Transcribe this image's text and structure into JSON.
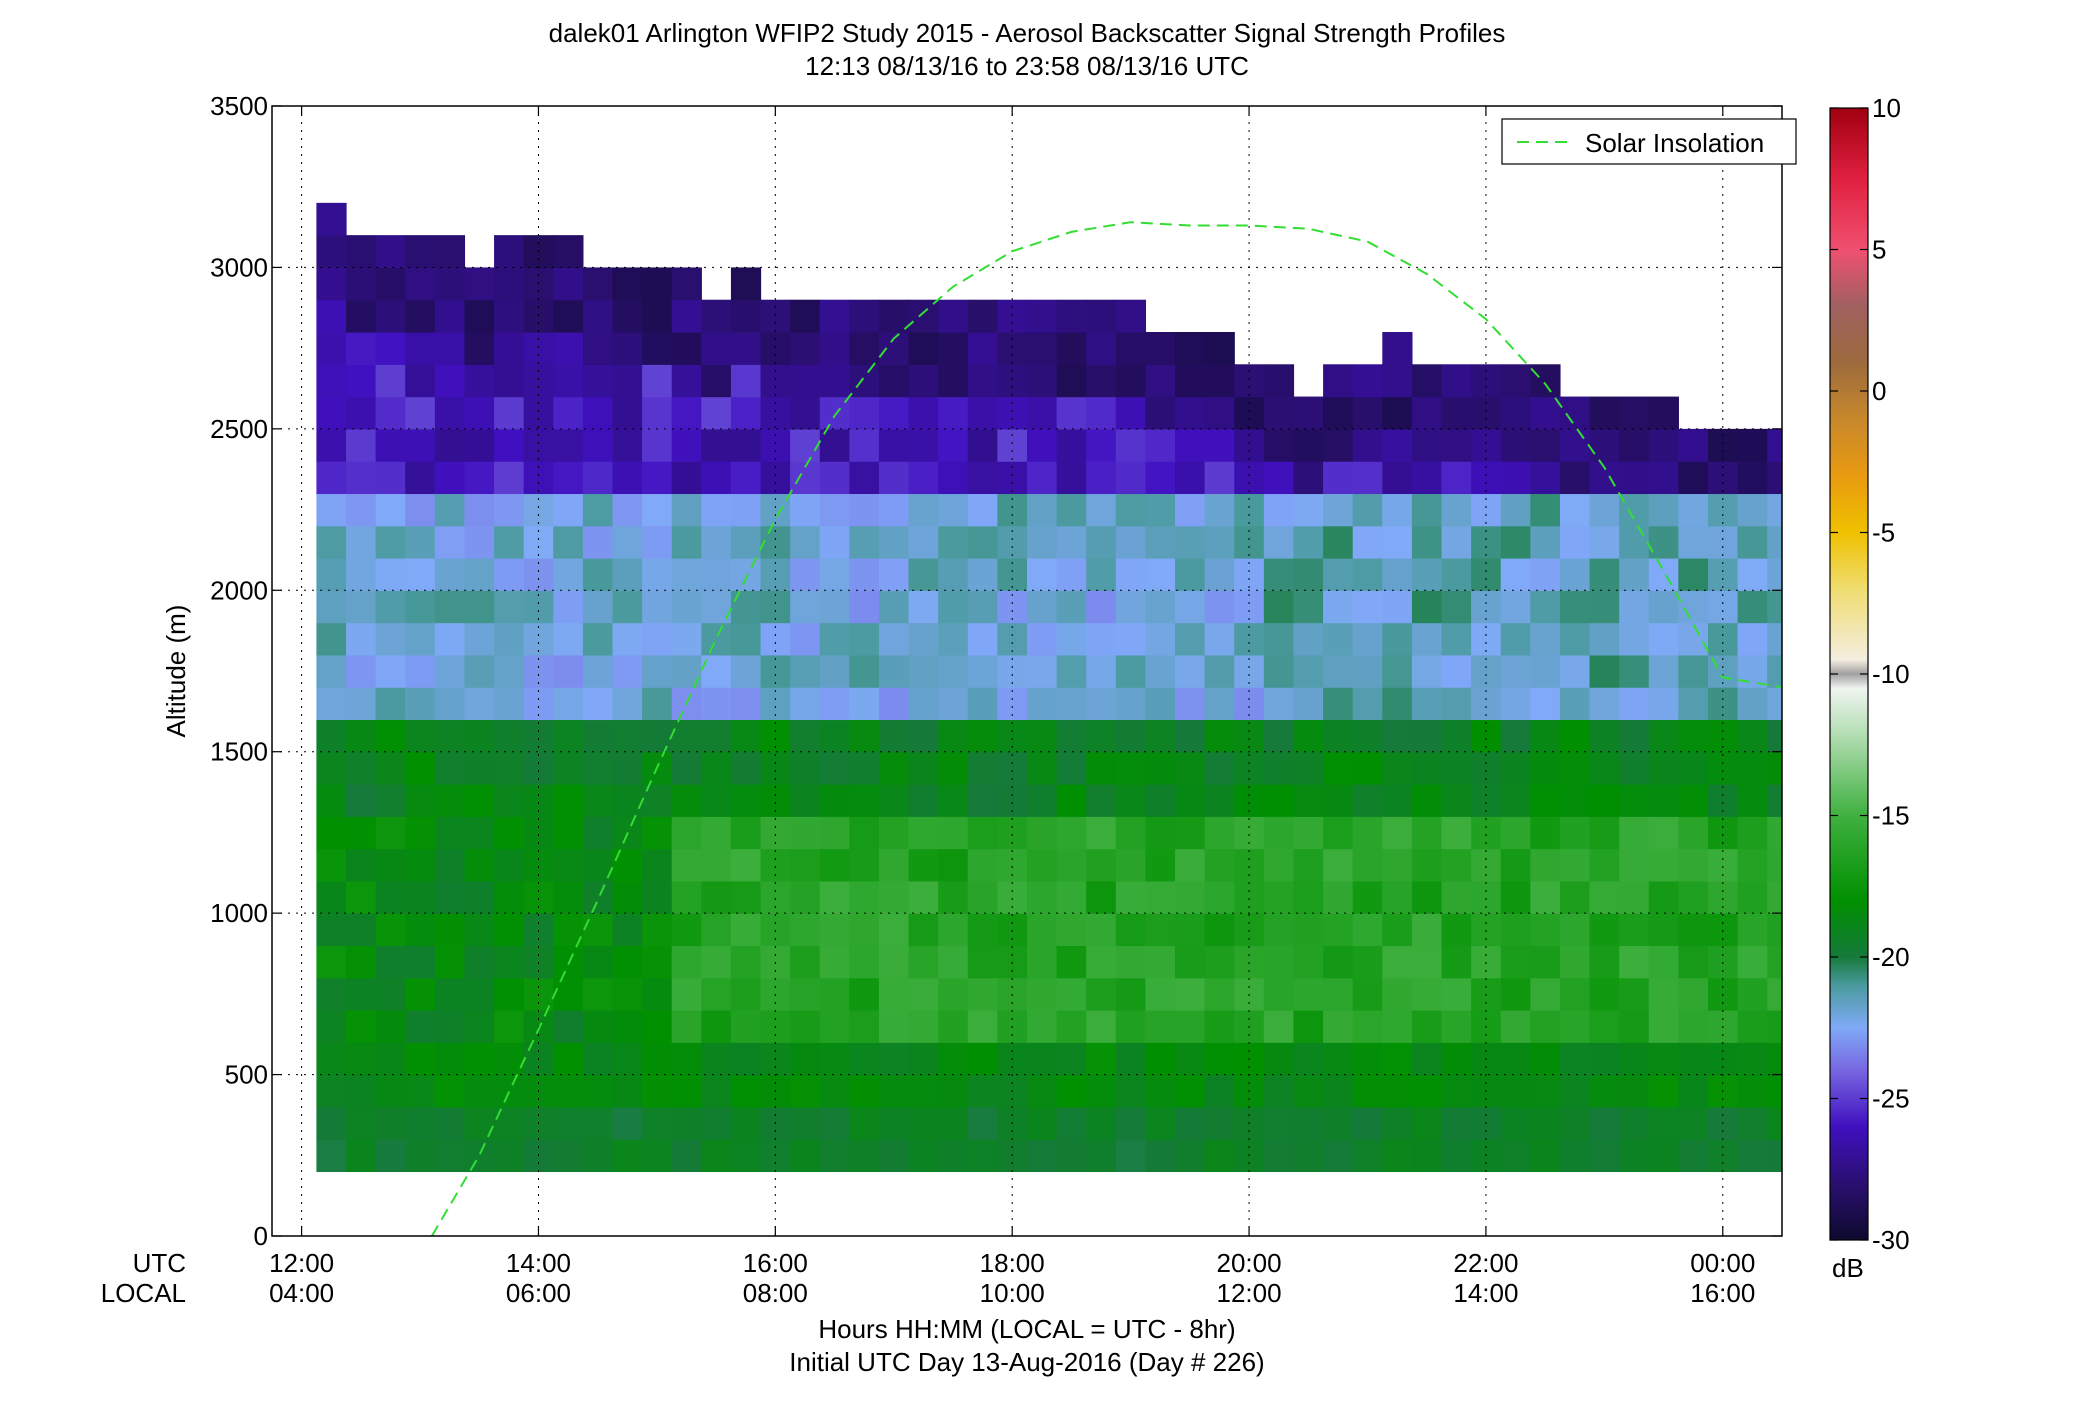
{
  "chart_data": {
    "type": "heatmap",
    "title": "dalek01 Arlington WFIP2 Study 2015 - Aerosol Backscatter Signal Strength Profiles",
    "subtitle": "12:13 08/13/16 to 23:58 08/13/16  UTC",
    "xlabel": "Hours HH:MM  (LOCAL = UTC - 8hr)",
    "xlabel2": "Initial UTC Day 13-Aug-2016 (Day # 226)",
    "ylabel": "Altitude (m)",
    "row_label_utc": "UTC",
    "row_label_local": "LOCAL",
    "xlim": [
      11.75,
      24.5
    ],
    "ylim": [
      0,
      3500
    ],
    "grid": true,
    "x_ticks": [
      12,
      14,
      16,
      18,
      20,
      22,
      24
    ],
    "x_tick_labels_utc": [
      "12:00",
      "14:00",
      "16:00",
      "18:00",
      "20:00",
      "22:00",
      "00:00"
    ],
    "x_tick_labels_local": [
      "04:00",
      "06:00",
      "08:00",
      "10:00",
      "12:00",
      "14:00",
      "16:00"
    ],
    "y_ticks": [
      0,
      500,
      1000,
      1500,
      2000,
      2500,
      3000,
      3500
    ],
    "y_tick_labels": [
      "0",
      "500",
      "1000",
      "1500",
      "2000",
      "2500",
      "3000",
      "3500"
    ],
    "colorbar": {
      "label": "dB",
      "range": [
        -30,
        10
      ],
      "ticks": [
        10,
        5,
        0,
        -5,
        -10,
        -15,
        -20,
        -25,
        -30
      ],
      "tick_labels": [
        "10",
        "5",
        "0",
        "-5",
        "-10",
        "-15",
        "-20",
        "-25",
        "-30"
      ],
      "stops": [
        {
          "v": -30,
          "c": "#0d0a2e"
        },
        {
          "v": -28,
          "c": "#2a0f70"
        },
        {
          "v": -26,
          "c": "#4010c0"
        },
        {
          "v": -24,
          "c": "#7766e0"
        },
        {
          "v": -22.5,
          "c": "#80aaf8"
        },
        {
          "v": -21,
          "c": "#4a9a9e"
        },
        {
          "v": -20,
          "c": "#157a3a"
        },
        {
          "v": -18,
          "c": "#009000"
        },
        {
          "v": -15,
          "c": "#40b040"
        },
        {
          "v": -12,
          "c": "#b8e0b8"
        },
        {
          "v": -10.5,
          "c": "#f0f4f0"
        },
        {
          "v": -10,
          "c": "#a0a0a0"
        },
        {
          "v": -9.5,
          "c": "#f4eee0"
        },
        {
          "v": -7,
          "c": "#f0dd70"
        },
        {
          "v": -5,
          "c": "#f0c000"
        },
        {
          "v": -3,
          "c": "#e89a10"
        },
        {
          "v": -1,
          "c": "#c8882c"
        },
        {
          "v": 1,
          "c": "#9c6a3c"
        },
        {
          "v": 3,
          "c": "#a06060"
        },
        {
          "v": 5,
          "c": "#f05070"
        },
        {
          "v": 7.5,
          "c": "#e02040"
        },
        {
          "v": 10,
          "c": "#a00010"
        }
      ]
    },
    "legend": {
      "position": "top-right",
      "entries": [
        "Solar Insolation"
      ]
    },
    "solar_insolation": {
      "color": "#33dd33",
      "style": "dashed",
      "x": [
        13.1,
        13.5,
        14,
        14.5,
        15,
        15.5,
        16,
        16.5,
        17,
        17.5,
        18,
        18.5,
        19,
        19.5,
        20,
        20.5,
        21,
        21.5,
        22,
        22.5,
        23,
        23.5,
        24,
        24.5
      ],
      "y": [
        0,
        250,
        640,
        1040,
        1450,
        1850,
        2220,
        2540,
        2780,
        2940,
        3050,
        3110,
        3140,
        3130,
        3130,
        3120,
        3080,
        2980,
        2840,
        2640,
        2380,
        2060,
        1730,
        1700
      ]
    },
    "heatmap": {
      "x_start": 12.25,
      "x_step": 0.25,
      "y_start": 200,
      "y_step": 100,
      "top_altitudes_m": [
        3200,
        3100,
        3100,
        3100,
        3100,
        3000,
        3100,
        3100,
        3100,
        3000,
        3000,
        3000,
        3000,
        2900,
        3000,
        2900,
        2900,
        2900,
        2900,
        2900,
        2900,
        2900,
        2900,
        2900,
        2900,
        2900,
        2900,
        2900,
        2800,
        2800,
        2800,
        2700,
        2700,
        2600,
        2700,
        2700,
        2800,
        2700,
        2700,
        2700,
        2700,
        2700,
        2600,
        2600,
        2600,
        2600,
        2500,
        2500,
        2500,
        2500,
        2600,
        2500,
        2500,
        2700,
        2600,
        2500,
        2700,
        2600
      ],
      "bottom_dB": -19.5,
      "low_dB": -18.5,
      "cloud_dB": -15.5,
      "cloud_base_m": 600,
      "cloud_top_m": 1300,
      "gray_base_m": 1600,
      "gray_top_m": 2300,
      "gray_dB": -22,
      "high_dB": -26,
      "top_dB": -28
    }
  }
}
